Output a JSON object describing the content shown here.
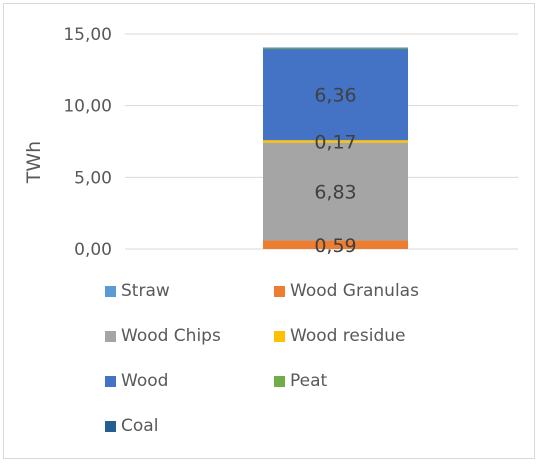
{
  "chart_data": {
    "type": "bar",
    "stacked": true,
    "title": "",
    "xlabel": "",
    "ylabel": "TWh",
    "ylim": [
      0,
      15
    ],
    "yticks": [
      "0,00",
      "5,00",
      "10,00",
      "15,00"
    ],
    "grid": true,
    "legend_position": "bottom",
    "categories": [
      ""
    ],
    "series": [
      {
        "name": "Straw",
        "values": [
          0
        ],
        "color": "#5b9bd5",
        "label": ""
      },
      {
        "name": "Wood Granulas",
        "values": [
          0.59
        ],
        "color": "#ed7d31",
        "label": "0,59"
      },
      {
        "name": "Wood Chips",
        "values": [
          6.83
        ],
        "color": "#a5a5a5",
        "label": "6,83"
      },
      {
        "name": "Wood residue",
        "values": [
          0.17
        ],
        "color": "#ffc000",
        "label": "0,17"
      },
      {
        "name": "Wood",
        "values": [
          6.36
        ],
        "color": "#4472c4",
        "label": "6,36"
      },
      {
        "name": "Peat",
        "values": [
          0.05
        ],
        "color": "#70ad47",
        "label": ""
      },
      {
        "name": "Coal",
        "values": [
          0.05
        ],
        "color": "#255e91",
        "label": ""
      }
    ]
  }
}
